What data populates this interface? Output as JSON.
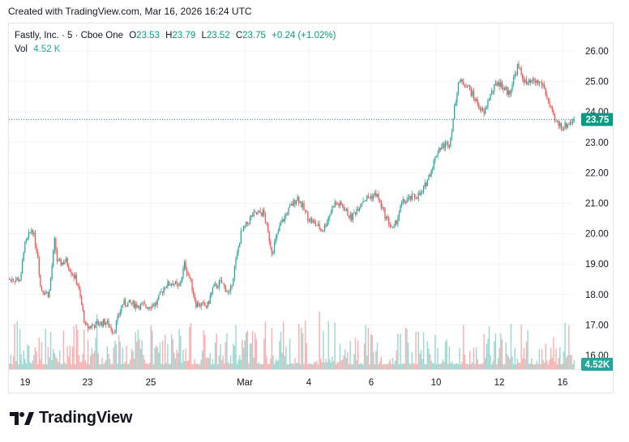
{
  "header": {
    "created_with": "Created with TradingView.com, Mar 16, 2026 16:24 UTC"
  },
  "legend": {
    "symbol": "Fastly, Inc. · 5 · Cboe One",
    "open_label": "O",
    "open": "23.53",
    "high_label": "H",
    "high": "23.79",
    "low_label": "L",
    "low": "23.52",
    "close_label": "C",
    "close": "23.75",
    "change": "+0.24 (+1.02%)",
    "vol_label": "Vol",
    "vol": "4.52 K"
  },
  "branding": {
    "logo_text": "TradingView"
  },
  "colors": {
    "up": "#26a69a",
    "down": "#ef5350",
    "price_line": "#089981",
    "grid": "#f0f3fa"
  },
  "chart_data": {
    "type": "candlestick",
    "title": "",
    "ylim": [
      15.8,
      26.4
    ],
    "price_ticks": [
      "26.00",
      "25.00",
      "24.00",
      "23.00",
      "22.00",
      "21.00",
      "20.00",
      "19.00",
      "18.00",
      "17.00",
      "16.00"
    ],
    "x_ticks": [
      "19",
      "23",
      "25",
      "Mar",
      "4",
      "6",
      "10",
      "12",
      "16"
    ],
    "last_price": "23.75",
    "last_volume": "4.52K",
    "series": [
      {
        "values": [
          [
            0,
            18.5
          ],
          [
            0.02,
            18.5
          ],
          [
            0.025,
            19.5
          ],
          [
            0.04,
            20.2
          ],
          [
            0.05,
            19.3
          ],
          [
            0.055,
            18.2
          ],
          [
            0.07,
            18.0
          ],
          [
            0.08,
            19.8
          ],
          [
            0.085,
            19.0
          ],
          [
            0.1,
            19.1
          ],
          [
            0.12,
            18.4
          ],
          [
            0.135,
            16.9
          ],
          [
            0.15,
            17.0
          ],
          [
            0.17,
            17.1
          ],
          [
            0.185,
            16.8
          ],
          [
            0.2,
            17.7
          ],
          [
            0.215,
            17.7
          ],
          [
            0.24,
            17.6
          ],
          [
            0.26,
            17.7
          ],
          [
            0.275,
            18.3
          ],
          [
            0.29,
            18.4
          ],
          [
            0.3,
            18.2
          ],
          [
            0.31,
            19.0
          ],
          [
            0.32,
            18.5
          ],
          [
            0.33,
            17.7
          ],
          [
            0.35,
            17.6
          ],
          [
            0.36,
            18.2
          ],
          [
            0.375,
            18.4
          ],
          [
            0.39,
            18.0
          ],
          [
            0.41,
            20.0
          ],
          [
            0.43,
            20.6
          ],
          [
            0.45,
            20.7
          ],
          [
            0.465,
            19.4
          ],
          [
            0.48,
            20.3
          ],
          [
            0.495,
            20.8
          ],
          [
            0.51,
            21.2
          ],
          [
            0.53,
            20.5
          ],
          [
            0.555,
            20.1
          ],
          [
            0.575,
            21.0
          ],
          [
            0.59,
            20.9
          ],
          [
            0.605,
            20.5
          ],
          [
            0.625,
            21.1
          ],
          [
            0.65,
            21.3
          ],
          [
            0.665,
            20.6
          ],
          [
            0.68,
            20.1
          ],
          [
            0.695,
            21.0
          ],
          [
            0.715,
            21.2
          ],
          [
            0.73,
            21.3
          ],
          [
            0.745,
            22.0
          ],
          [
            0.76,
            22.8
          ],
          [
            0.78,
            23.0
          ],
          [
            0.795,
            25.0
          ],
          [
            0.81,
            24.9
          ],
          [
            0.825,
            24.4
          ],
          [
            0.84,
            23.9
          ],
          [
            0.85,
            24.5
          ],
          [
            0.865,
            25.0
          ],
          [
            0.885,
            24.6
          ],
          [
            0.9,
            25.5
          ],
          [
            0.915,
            24.9
          ],
          [
            0.93,
            25.0
          ],
          [
            0.945,
            24.9
          ],
          [
            0.955,
            24.3
          ],
          [
            0.965,
            23.7
          ],
          [
            0.98,
            23.5
          ],
          [
            1.0,
            23.75
          ]
        ]
      }
    ]
  }
}
